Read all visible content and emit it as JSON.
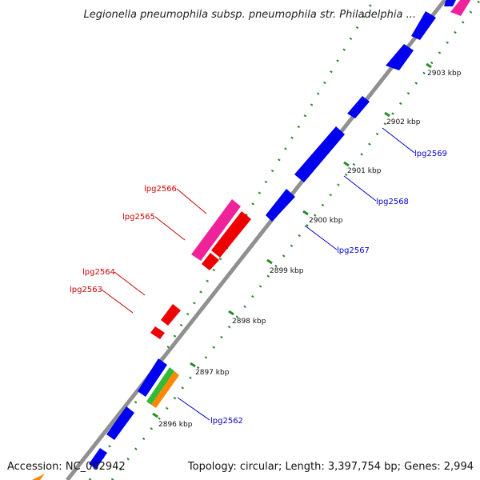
{
  "header": {
    "title": "Legionella pneumophila subsp. pneumophila str. Philadelphia ..."
  },
  "footer": {
    "accession": "Accession: NC_002942",
    "summary": "Topology: circular; Length: 3,397,754 bp; Genes: 2,994"
  },
  "colors": {
    "backbone": "#909090",
    "tick_dot": "#2a8a2a",
    "forward_gene": "#0000ee",
    "reverse_gene": "#ee0000",
    "pink_gene": "#ee2299",
    "green_gene": "#33bb33",
    "orange_gene": "#ff8800",
    "label_blue": "#0000cc",
    "label_red": "#cc0000"
  },
  "ticks": [
    "2903 kbp",
    "2902 kbp",
    "2901 kbp",
    "2900 kbp",
    "2899 kbp",
    "2898 kbp",
    "2897 kbp",
    "2896 kbp"
  ],
  "gene_labels": [
    {
      "name": "lpg2569",
      "color": "blue"
    },
    {
      "name": "lpg2568",
      "color": "blue"
    },
    {
      "name": "lpg2567",
      "color": "blue"
    },
    {
      "name": "lpg2566",
      "color": "red"
    },
    {
      "name": "lpg2565",
      "color": "red"
    },
    {
      "name": "lpg2564",
      "color": "red"
    },
    {
      "name": "lpg2563",
      "color": "red"
    },
    {
      "name": "lpg2562",
      "color": "blue"
    }
  ]
}
